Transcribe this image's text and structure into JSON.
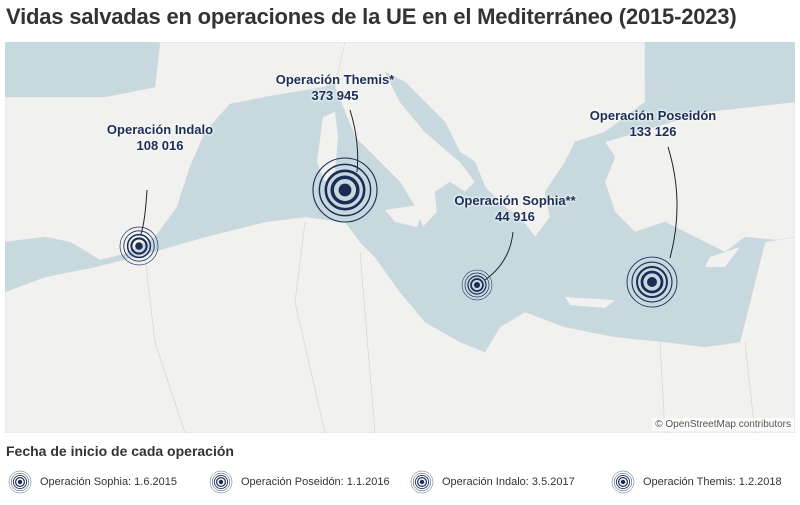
{
  "title": "Vidas salvadas en operaciones de la UE en el Mediterráneo (2015-2023)",
  "colors": {
    "sea": "#c7d8df",
    "land": "#f1f1ef",
    "marker": "#1b2c55"
  },
  "markers": [
    {
      "name": "Operación Indalo",
      "value": "108 016"
    },
    {
      "name": "Operación Themis*",
      "value": "373 945"
    },
    {
      "name": "Operación Sophia**",
      "value": "44 916"
    },
    {
      "name": "Operación Poseidón",
      "value": "133 126"
    }
  ],
  "attribution": "© OpenStreetMap contributors",
  "legend": {
    "title": "Fecha de inicio de cada operación",
    "items": [
      "Operación Sophia: 1.6.2015",
      "Operación Poseidón: 1.1.2016",
      "Operación Indalo: 3.5.2017",
      "Operación Themis: 1.2.2018"
    ]
  }
}
